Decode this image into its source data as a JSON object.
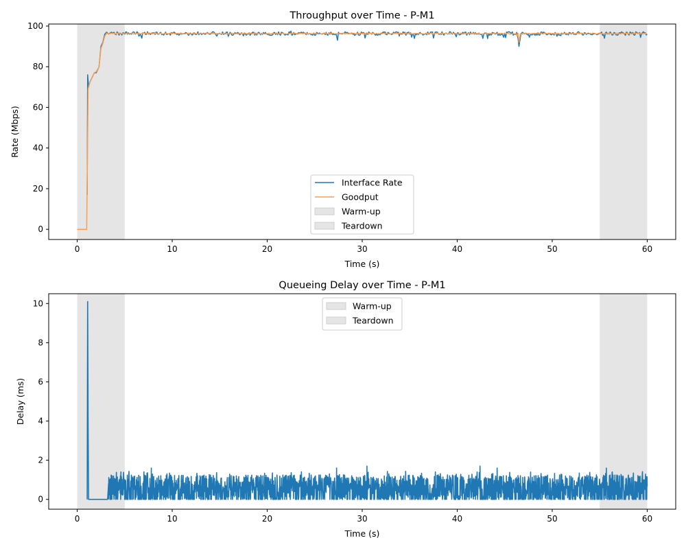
{
  "chart_data": [
    {
      "type": "line",
      "title": "Throughput over Time - P-M1",
      "xlabel": "Time (s)",
      "ylabel": "Rate (Mbps)",
      "xlim": [
        -3,
        63
      ],
      "ylim": [
        -5,
        101
      ],
      "xticks": [
        0,
        10,
        20,
        30,
        40,
        50,
        60
      ],
      "yticks": [
        0,
        20,
        40,
        60,
        80,
        100
      ],
      "grid": false,
      "legend_position": "lower-center",
      "shaded_regions": [
        {
          "name": "Warm-up",
          "x_start": 0,
          "x_end": 5,
          "color": "#e5e5e5"
        },
        {
          "name": "Teardown",
          "x_start": 55,
          "x_end": 60,
          "color": "#e5e5e5"
        }
      ],
      "series": [
        {
          "name": "Interface Rate",
          "color": "#1f77b4",
          "x": [
            1.05,
            1.1,
            1.2,
            1.3,
            1.5,
            1.8,
            2.0,
            2.3,
            2.5,
            2.7,
            2.9,
            3.1,
            3.3,
            3.6,
            4.0,
            4.5,
            5.0,
            5.5,
            6.0,
            6.5,
            6.8,
            7.0,
            7.5,
            8.0,
            9.0,
            10.0,
            11.0,
            12.0,
            13.0,
            14.0,
            14.7,
            15.0,
            16.0,
            17.0,
            18.0,
            19.0,
            20.0,
            21.0,
            22.0,
            22.5,
            23.0,
            24.0,
            25.0,
            26.0,
            27.0,
            27.4,
            28.0,
            29.0,
            30.0,
            31.0,
            32.0,
            33.0,
            34.0,
            35.0,
            36.0,
            37.0,
            38.0,
            39.0,
            40.0,
            41.0,
            42.0,
            43.0,
            44.0,
            45.0,
            46.0,
            46.4,
            46.5,
            46.7,
            47.0,
            48.0,
            49.0,
            50.0,
            50.5,
            51.0,
            52.0,
            53.0,
            54.0,
            55.0,
            55.5,
            56.0,
            57.0,
            58.0,
            59.0,
            60.0
          ],
          "y": [
            17,
            76,
            70,
            72,
            74,
            77,
            77,
            80,
            90,
            92,
            96,
            97,
            96,
            97,
            96,
            96.5,
            96,
            96,
            97,
            95,
            94,
            96.5,
            96,
            96.5,
            96,
            96.5,
            96,
            96,
            96.5,
            96,
            95,
            96.5,
            96,
            96.5,
            96,
            96.5,
            96,
            96.5,
            96,
            97.5,
            96,
            96.5,
            95.5,
            96.5,
            96,
            93,
            96.5,
            96,
            96.5,
            96,
            96.5,
            96,
            96.5,
            96,
            96.5,
            96,
            96.5,
            96,
            96.5,
            95.5,
            96,
            96.5,
            96,
            96.5,
            96,
            94,
            90,
            96,
            96.5,
            96,
            96.5,
            96,
            95,
            96.5,
            96,
            96.5,
            96,
            96.5,
            94,
            96,
            96.5,
            96,
            96.5,
            96
          ]
        },
        {
          "name": "Goodput",
          "color": "#ff9e4a",
          "x": [
            0.0,
            1.0,
            1.15,
            1.3,
            1.5,
            1.8,
            2.0,
            2.3,
            2.5,
            2.7,
            2.9,
            3.1,
            3.3,
            3.6,
            4.0,
            5.0,
            6.0,
            10.0,
            15.0,
            20.0,
            25.0,
            30.0,
            35.0,
            40.0,
            45.0,
            46.3,
            46.5,
            46.8,
            50.0,
            55.0,
            60.0
          ],
          "y": [
            0,
            0,
            69,
            72,
            74,
            77,
            77.5,
            80,
            89,
            91.5,
            95,
            96.5,
            96,
            96.5,
            96.2,
            96.2,
            96.3,
            96.2,
            96.3,
            96.2,
            96.3,
            96.2,
            96.3,
            96.2,
            96.3,
            95,
            92,
            96,
            96.3,
            96.2,
            96.2
          ]
        }
      ]
    },
    {
      "type": "line",
      "title": "Queueing Delay over Time - P-M1",
      "xlabel": "Time (s)",
      "ylabel": "Delay (ms)",
      "xlim": [
        -3,
        63
      ],
      "ylim": [
        -0.5,
        10.5
      ],
      "xticks": [
        0,
        10,
        20,
        30,
        40,
        50,
        60
      ],
      "yticks": [
        0,
        2,
        4,
        6,
        8,
        10
      ],
      "grid": false,
      "legend_position": "upper-center",
      "shaded_regions": [
        {
          "name": "Warm-up",
          "x_start": 0,
          "x_end": 5,
          "color": "#e5e5e5"
        },
        {
          "name": "Teardown",
          "x_start": 55,
          "x_end": 60,
          "color": "#e5e5e5"
        }
      ],
      "series": [
        {
          "name": "Queueing Delay",
          "color": "#1f77b4",
          "x": [
            1.05,
            1.1,
            1.15,
            1.2,
            3.2,
            3.3,
            5.0,
            7.8,
            10.0,
            20.0,
            27.3,
            30.0,
            30.5,
            40.0,
            42.4,
            44.2,
            50.0,
            55.7,
            60.0
          ],
          "y": [
            0,
            10.1,
            3.5,
            0,
            0,
            0.8,
            0.7,
            1.6,
            0.6,
            0.6,
            1.6,
            0.6,
            1.7,
            0.6,
            1.7,
            1.6,
            0.6,
            1.6,
            0.6
          ],
          "noise": {
            "x_start": 3.3,
            "x_end": 60.0,
            "min": 0,
            "max": 1.7,
            "typical": 0.6
          }
        }
      ]
    }
  ]
}
